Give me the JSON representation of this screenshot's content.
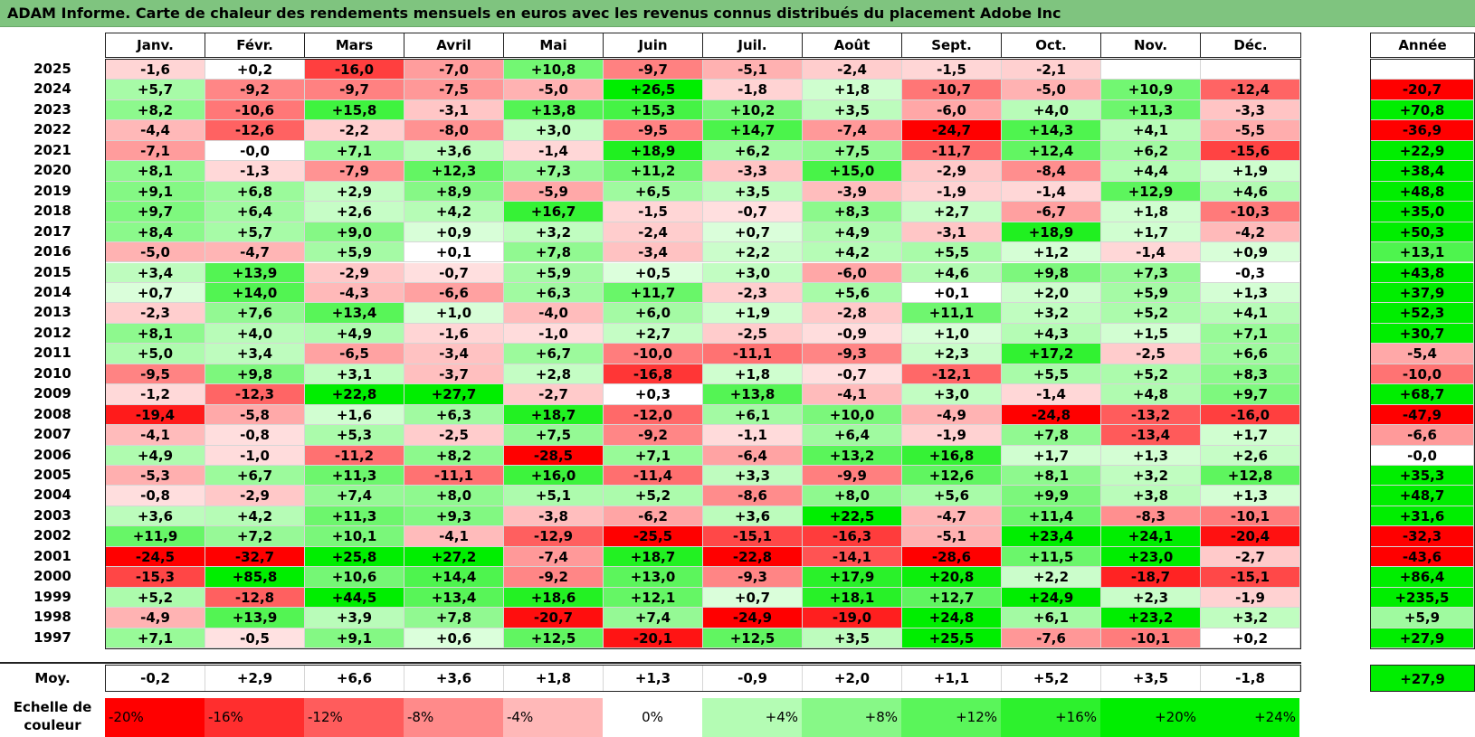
{
  "chart_data": {
    "type": "heatmap",
    "title": "ADAM Informe. Carte de chaleur des rendements mensuels en euros avec les revenus connus distribués du placement Adobe Inc",
    "columns": [
      "Janv.",
      "Févr.",
      "Mars",
      "Avril",
      "Mai",
      "Juin",
      "Juil.",
      "Août",
      "Sept.",
      "Oct.",
      "Nov.",
      "Déc."
    ],
    "year_header": "Année",
    "rows": [
      {
        "year": "2025",
        "values": [
          "-1,6",
          "+0,2",
          "-16,0",
          "-7,0",
          "+10,8",
          "-9,7",
          "-5,1",
          "-2,4",
          "-1,5",
          "-2,1",
          "",
          ""
        ],
        "annual": ""
      },
      {
        "year": "2024",
        "values": [
          "+5,7",
          "-9,2",
          "-9,7",
          "-7,5",
          "-5,0",
          "+26,5",
          "-1,8",
          "+1,8",
          "-10,7",
          "-5,0",
          "+10,9",
          "-12,4"
        ],
        "annual": "-20,7"
      },
      {
        "year": "2023",
        "values": [
          "+8,2",
          "-10,6",
          "+15,8",
          "-3,1",
          "+13,8",
          "+15,3",
          "+10,2",
          "+3,5",
          "-6,0",
          "+4,0",
          "+11,3",
          "-3,3"
        ],
        "annual": "+70,8"
      },
      {
        "year": "2022",
        "values": [
          "-4,4",
          "-12,6",
          "-2,2",
          "-8,0",
          "+3,0",
          "-9,5",
          "+14,7",
          "-7,4",
          "-24,7",
          "+14,3",
          "+4,1",
          "-5,5"
        ],
        "annual": "-36,9"
      },
      {
        "year": "2021",
        "values": [
          "-7,1",
          "-0,0",
          "+7,1",
          "+3,6",
          "-1,4",
          "+18,9",
          "+6,2",
          "+7,5",
          "-11,7",
          "+12,4",
          "+6,2",
          "-15,6"
        ],
        "annual": "+22,9"
      },
      {
        "year": "2020",
        "values": [
          "+8,1",
          "-1,3",
          "-7,9",
          "+12,3",
          "+7,3",
          "+11,2",
          "-3,3",
          "+15,0",
          "-2,9",
          "-8,4",
          "+4,4",
          "+1,9"
        ],
        "annual": "+38,4"
      },
      {
        "year": "2019",
        "values": [
          "+9,1",
          "+6,8",
          "+2,9",
          "+8,9",
          "-5,9",
          "+6,5",
          "+3,5",
          "-3,9",
          "-1,9",
          "-1,4",
          "+12,9",
          "+4,6"
        ],
        "annual": "+48,8"
      },
      {
        "year": "2018",
        "values": [
          "+9,7",
          "+6,4",
          "+2,6",
          "+4,2",
          "+16,7",
          "-1,5",
          "-0,7",
          "+8,3",
          "+2,7",
          "-6,7",
          "+1,8",
          "-10,3"
        ],
        "annual": "+35,0"
      },
      {
        "year": "2017",
        "values": [
          "+8,4",
          "+5,7",
          "+9,0",
          "+0,9",
          "+3,2",
          "-2,4",
          "+0,7",
          "+4,9",
          "-3,1",
          "+18,9",
          "+1,7",
          "-4,2"
        ],
        "annual": "+50,3"
      },
      {
        "year": "2016",
        "values": [
          "-5,0",
          "-4,7",
          "+5,9",
          "+0,1",
          "+7,8",
          "-3,4",
          "+2,2",
          "+4,2",
          "+5,5",
          "+1,2",
          "-1,4",
          "+0,9"
        ],
        "annual": "+13,1"
      },
      {
        "year": "2015",
        "values": [
          "+3,4",
          "+13,9",
          "-2,9",
          "-0,7",
          "+5,9",
          "+0,5",
          "+3,0",
          "-6,0",
          "+4,6",
          "+9,8",
          "+7,3",
          "-0,3"
        ],
        "annual": "+43,8"
      },
      {
        "year": "2014",
        "values": [
          "+0,7",
          "+14,0",
          "-4,3",
          "-6,6",
          "+6,3",
          "+11,7",
          "-2,3",
          "+5,6",
          "+0,1",
          "+2,0",
          "+5,9",
          "+1,3"
        ],
        "annual": "+37,9"
      },
      {
        "year": "2013",
        "values": [
          "-2,3",
          "+7,6",
          "+13,4",
          "+1,0",
          "-4,0",
          "+6,0",
          "+1,9",
          "-2,8",
          "+11,1",
          "+3,2",
          "+5,2",
          "+4,1"
        ],
        "annual": "+52,3"
      },
      {
        "year": "2012",
        "values": [
          "+8,1",
          "+4,0",
          "+4,9",
          "-1,6",
          "-1,0",
          "+2,7",
          "-2,5",
          "-0,9",
          "+1,0",
          "+4,3",
          "+1,5",
          "+7,1"
        ],
        "annual": "+30,7"
      },
      {
        "year": "2011",
        "values": [
          "+5,0",
          "+3,4",
          "-6,5",
          "-3,4",
          "+6,7",
          "-10,0",
          "-11,1",
          "-9,3",
          "+2,3",
          "+17,2",
          "-2,5",
          "+6,6"
        ],
        "annual": "-5,4"
      },
      {
        "year": "2010",
        "values": [
          "-9,5",
          "+9,8",
          "+3,1",
          "-3,7",
          "+2,8",
          "-16,8",
          "+1,8",
          "-0,7",
          "-12,1",
          "+5,5",
          "+5,2",
          "+8,3"
        ],
        "annual": "-10,0"
      },
      {
        "year": "2009",
        "values": [
          "-1,2",
          "-12,3",
          "+22,8",
          "+27,7",
          "-2,7",
          "+0,3",
          "+13,8",
          "-4,1",
          "+3,0",
          "-1,4",
          "+4,8",
          "+9,7"
        ],
        "annual": "+68,7"
      },
      {
        "year": "2008",
        "values": [
          "-19,4",
          "-5,8",
          "+1,6",
          "+6,3",
          "+18,7",
          "-12,0",
          "+6,1",
          "+10,0",
          "-4,9",
          "-24,8",
          "-13,2",
          "-16,0"
        ],
        "annual": "-47,9"
      },
      {
        "year": "2007",
        "values": [
          "-4,1",
          "-0,8",
          "+5,3",
          "-2,5",
          "+7,5",
          "-9,2",
          "-1,1",
          "+6,4",
          "-1,9",
          "+7,8",
          "-13,4",
          "+1,7"
        ],
        "annual": "-6,6"
      },
      {
        "year": "2006",
        "values": [
          "+4,9",
          "-1,0",
          "-11,2",
          "+8,2",
          "-28,5",
          "+7,1",
          "-6,4",
          "+13,2",
          "+16,8",
          "+1,7",
          "+1,3",
          "+2,6"
        ],
        "annual": "-0,0"
      },
      {
        "year": "2005",
        "values": [
          "-5,3",
          "+6,7",
          "+11,3",
          "-11,1",
          "+16,0",
          "-11,4",
          "+3,3",
          "-9,9",
          "+12,6",
          "+8,1",
          "+3,2",
          "+12,8"
        ],
        "annual": "+35,3"
      },
      {
        "year": "2004",
        "values": [
          "-0,8",
          "-2,9",
          "+7,4",
          "+8,0",
          "+5,1",
          "+5,2",
          "-8,6",
          "+8,0",
          "+5,6",
          "+9,9",
          "+3,8",
          "+1,3"
        ],
        "annual": "+48,7"
      },
      {
        "year": "2003",
        "values": [
          "+3,6",
          "+4,2",
          "+11,3",
          "+9,3",
          "-3,8",
          "-6,2",
          "+3,6",
          "+22,5",
          "-4,7",
          "+11,4",
          "-8,3",
          "-10,1"
        ],
        "annual": "+31,6"
      },
      {
        "year": "2002",
        "values": [
          "+11,9",
          "+7,2",
          "+10,1",
          "-4,1",
          "-12,9",
          "-25,5",
          "-15,1",
          "-16,3",
          "-5,1",
          "+23,4",
          "+24,1",
          "-20,4"
        ],
        "annual": "-32,3"
      },
      {
        "year": "2001",
        "values": [
          "-24,5",
          "-32,7",
          "+25,8",
          "+27,2",
          "-7,4",
          "+18,7",
          "-22,8",
          "-14,1",
          "-28,6",
          "+11,5",
          "+23,0",
          "-2,7"
        ],
        "annual": "-43,6"
      },
      {
        "year": "2000",
        "values": [
          "-15,3",
          "+85,8",
          "+10,6",
          "+14,4",
          "-9,2",
          "+13,0",
          "-9,3",
          "+17,9",
          "+20,8",
          "+2,2",
          "-18,7",
          "-15,1"
        ],
        "annual": "+86,4"
      },
      {
        "year": "1999",
        "values": [
          "+5,2",
          "-12,8",
          "+44,5",
          "+13,4",
          "+18,6",
          "+12,1",
          "+0,7",
          "+18,1",
          "+12,7",
          "+24,9",
          "+2,3",
          "-1,9"
        ],
        "annual": "+235,5"
      },
      {
        "year": "1998",
        "values": [
          "-4,9",
          "+13,9",
          "+3,9",
          "+7,8",
          "-20,7",
          "+7,4",
          "-24,9",
          "-19,0",
          "+24,8",
          "+6,1",
          "+23,2",
          "+3,2"
        ],
        "annual": "+5,9"
      },
      {
        "year": "1997",
        "values": [
          "+7,1",
          "-0,5",
          "+9,1",
          "+0,6",
          "+12,5",
          "-20,1",
          "+12,5",
          "+3,5",
          "+25,5",
          "-7,6",
          "-10,1",
          "+0,2"
        ],
        "annual": "+27,9"
      }
    ],
    "average": {
      "label": "Moy.",
      "values": [
        "-0,2",
        "+2,9",
        "+6,6",
        "+3,6",
        "+1,8",
        "+1,3",
        "-0,9",
        "+2,0",
        "+1,1",
        "+5,2",
        "+3,5",
        "-1,8"
      ],
      "annual": "+27,9"
    },
    "legend": {
      "label": "Echelle de couleur",
      "steps": [
        "-20%",
        "-16%",
        "-12%",
        "-8%",
        "-4%",
        "0%",
        "+4%",
        "+8%",
        "+12%",
        "+16%",
        "+20%",
        "+24%"
      ]
    },
    "colors": {
      "negative": "#ff0000",
      "neutral": "#ffffff",
      "positive": "#00ee00",
      "title_bar": "#7fc47f"
    }
  }
}
